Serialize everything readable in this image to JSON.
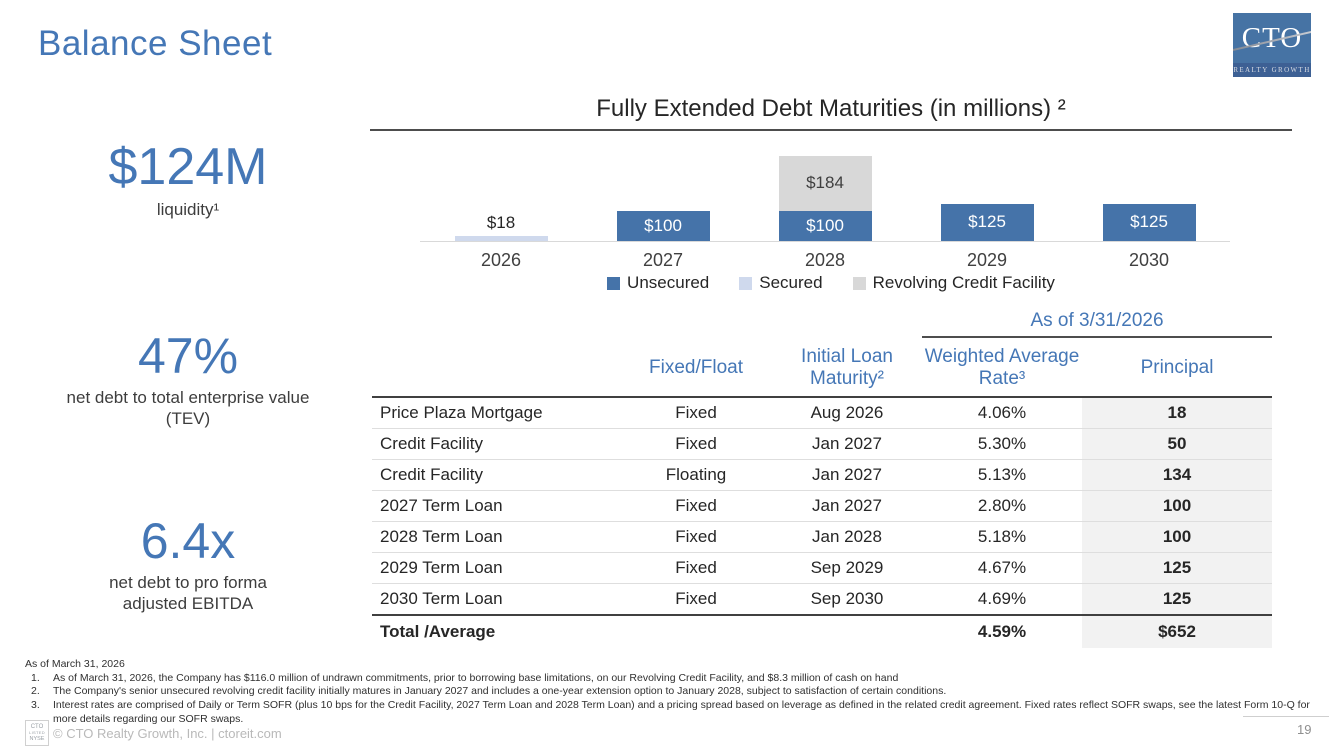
{
  "slide": {
    "title": "Balance Sheet",
    "page_number": "19"
  },
  "logo": {
    "text": "CTO",
    "tagline": "REALTY GROWTH"
  },
  "metrics": [
    {
      "value": "$124M",
      "label": "liquidity¹"
    },
    {
      "value": "47%",
      "label": "net debt to total enterprise value (TEV)"
    },
    {
      "value": "6.4x",
      "label": "net debt to pro forma adjusted EBITDA"
    }
  ],
  "chart_data": {
    "type": "bar",
    "stacked": true,
    "title": "Fully Extended Debt Maturities (in millions) ²",
    "categories": [
      "2026",
      "2027",
      "2028",
      "2029",
      "2030"
    ],
    "series": [
      {
        "name": "Unsecured",
        "color": "#4573a9",
        "label_color": "#ffffff",
        "values": [
          0,
          100,
          100,
          125,
          125
        ]
      },
      {
        "name": "Secured",
        "color": "#cfd9ed",
        "label_color": "#262626",
        "values": [
          18,
          0,
          0,
          0,
          0
        ]
      },
      {
        "name": "Revolving Credit Facility",
        "color": "#d8d8d8",
        "label_color": "#3f3f3f",
        "values": [
          0,
          0,
          184,
          0,
          0
        ]
      }
    ],
    "value_prefix": "$",
    "bar_labels": {
      "2026": "$18",
      "2027": "$100",
      "2028_unsecured": "$100",
      "2028_revolver": "$184",
      "2029": "$125",
      "2030": "$125"
    },
    "ylim": [
      0,
      300
    ],
    "axis": "hidden",
    "legend_position": "bottom"
  },
  "table": {
    "as_of": "As of 3/31/2026",
    "headers": [
      "",
      "Fixed/Float",
      "Initial Loan Maturity²",
      "Weighted Average Rate³",
      "Principal"
    ],
    "rows": [
      [
        "Price Plaza Mortgage",
        "Fixed",
        "Aug 2026",
        "4.06%",
        "18"
      ],
      [
        "Credit Facility",
        "Fixed",
        "Jan 2027",
        "5.30%",
        "50"
      ],
      [
        "Credit Facility",
        "Floating",
        "Jan 2027",
        "5.13%",
        "134"
      ],
      [
        "2027 Term Loan",
        "Fixed",
        "Jan 2027",
        "2.80%",
        "100"
      ],
      [
        "2028 Term Loan",
        "Fixed",
        "Jan 2028",
        "5.18%",
        "100"
      ],
      [
        "2029 Term Loan",
        "Fixed",
        "Sep 2029",
        "4.67%",
        "125"
      ],
      [
        "2030 Term Loan",
        "Fixed",
        "Sep 2030",
        "4.69%",
        "125"
      ]
    ],
    "total": {
      "label": "Total /Average",
      "rate": "4.59%",
      "principal": "$652"
    }
  },
  "footnotes": {
    "heading": "As of March 31, 2026",
    "items": [
      {
        "num": "1.",
        "text": "As of March 31, 2026, the Company has $116.0 million of undrawn commitments, prior to borrowing base limitations, on our Revolving Credit Facility, and $8.3 million of cash on hand"
      },
      {
        "num": "2.",
        "text": "The Company's senior unsecured revolving credit facility initially matures in January 2027 and includes a one-year extension option to January 2028, subject to satisfaction of certain conditions."
      },
      {
        "num": "3.",
        "text": "Interest rates are comprised of Daily or Term SOFR (plus 10 bps for the Credit Facility, 2027 Term Loan and 2028 Term Loan) and a pricing spread based on leverage as defined in the related credit agreement.  Fixed rates reflect SOFR swaps, see the latest Form 10-Q for more details regarding our SOFR swaps."
      }
    ]
  },
  "footer": {
    "copyright": "© CTO Realty Growth, Inc. | ctoreit.com",
    "badge": [
      "CTO",
      "LISTED",
      "NYSE"
    ]
  },
  "colors": {
    "accent_blue": "#4577b6",
    "bar_blue": "#4573a9",
    "bar_secured": "#cfd9ed",
    "bar_revolver": "#d8d8d8",
    "principal_column_bg": "#f2f2f2",
    "logo_blue": "#4673a4"
  }
}
